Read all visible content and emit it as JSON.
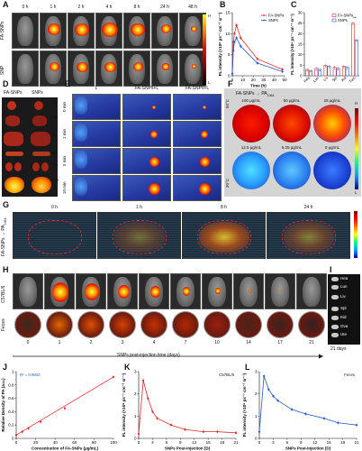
{
  "panel_A": {
    "label": "A",
    "time_labels": [
      "0 h",
      "1 h",
      "2 h",
      "4 h",
      "8 h",
      "24 h",
      "48 h"
    ],
    "row_labels": [
      "FA-SNPs",
      "SNP"
    ],
    "colorbar": {
      "high": "H",
      "low": "L"
    }
  },
  "panel_B": {
    "label": "B",
    "chart_data": {
      "type": "line",
      "xlabel": "Time (h)",
      "ylabel": "FL intensity (×10⁸ ps⁻¹ cm⁻² sr⁻¹)",
      "xlim": [
        0,
        50
      ],
      "ylim": [
        0,
        15
      ],
      "xticks": [
        0,
        10,
        20,
        30,
        40,
        50
      ],
      "yticks": [
        0,
        5,
        10,
        15
      ],
      "series": [
        {
          "name": "FA-SNPs",
          "color": "#e0282e",
          "x": [
            0,
            1,
            2,
            4,
            8,
            24,
            48
          ],
          "y": [
            0.5,
            8,
            10,
            12,
            9,
            4,
            1.5
          ]
        },
        {
          "name": "SNPs",
          "color": "#2a55c8",
          "x": [
            0,
            1,
            2,
            4,
            8,
            24,
            48
          ],
          "y": [
            0.5,
            6,
            8,
            9,
            7,
            3,
            1
          ]
        }
      ]
    }
  },
  "panel_C": {
    "label": "C",
    "chart_data": {
      "type": "bar",
      "ylabel": "FL intensity (×10⁸ ps⁻¹ cm⁻² sr⁻¹)",
      "categories": [
        "Hea",
        "Lun",
        "Liv",
        "Spl",
        "Kid",
        "Tum"
      ],
      "yticks": [
        0,
        5,
        10,
        15,
        20,
        25,
        30
      ],
      "ylim": [
        0,
        30
      ],
      "series": [
        {
          "name": "FA-SNPs",
          "color": "#e0282e",
          "values": [
            3,
            3.5,
            5,
            4,
            4.5,
            25
          ]
        },
        {
          "name": "SNPs",
          "color": "#2a55c8",
          "values": [
            2.5,
            3,
            4.5,
            3.5,
            4,
            17
          ]
        }
      ],
      "annotation": "**"
    }
  },
  "panel_D": {
    "label": "D",
    "col_labels": [
      "FA-SNPs",
      "SNPs"
    ],
    "organs": [
      "Hea",
      "Lun",
      "Liv",
      "Spl",
      "Kid",
      "Tum"
    ]
  },
  "panel_E": {
    "label": "E",
    "col_labels": [
      "L",
      "FA-SNPs+L",
      "FA-SNPs+L"
    ],
    "row_labels": [
      "0 min",
      "1 min",
      "5 min",
      "10 min"
    ]
  },
  "panel_F": {
    "label": "F",
    "title": "FA-SNPs → PA",
    "title_sub": "1064",
    "dish_labels": [
      "100 μg/mL",
      "50 μg/mL",
      "25 μg/mL",
      "12.5 μg/mL",
      "6.25 μg/mL",
      "0 μg/mL"
    ],
    "temp_high": "50°C",
    "temp_low": "30°C",
    "colorbar": {
      "high": "H",
      "low": "L"
    }
  },
  "panel_G": {
    "label": "G",
    "row_label": "FA-SNPs → PA",
    "row_label_sub": "1064",
    "time_labels": [
      "0 h",
      "1 h",
      "8 h",
      "24 h"
    ]
  },
  "panel_H": {
    "label": "H",
    "row_labels": [
      "C57BL/6",
      "Feces"
    ],
    "day_labels": [
      "0",
      "1",
      "2",
      "3",
      "4",
      "7",
      "10",
      "14",
      "17",
      "21"
    ],
    "xlabel": "SNPs post-injection time (days)"
  },
  "panel_I": {
    "label": "I",
    "organs": [
      "Hea",
      "Lun",
      "Liv",
      "Spl",
      "Kid",
      "Ova",
      "Ute"
    ],
    "caption": "21 days"
  },
  "panel_J": {
    "label": "J",
    "chart_data": {
      "type": "line",
      "xlabel": "Concentration of FA-SNPs (μg/mL)",
      "ylabel": "Relative Density of PA (a.u.)",
      "annotation": "R² = 0.9833",
      "xlim": [
        0,
        100
      ],
      "ylim": [
        0,
        1.0
      ],
      "xticks": [
        0,
        20,
        40,
        60,
        80,
        100
      ],
      "yticks": [
        0,
        0.2,
        0.4,
        0.6,
        0.8,
        1.0
      ],
      "series": [
        {
          "color": "#e0282e",
          "x": [
            0,
            6.25,
            12.5,
            25,
            50,
            100
          ],
          "y": [
            0.05,
            0.1,
            0.15,
            0.25,
            0.45,
            0.92
          ]
        }
      ]
    }
  },
  "panel_K": {
    "label": "K",
    "chart_data": {
      "type": "line",
      "xlabel": "SNPs Post-injection (D)",
      "ylabel": "FL intensity (×10⁸ ps⁻¹ cm⁻² sr⁻¹)",
      "annotation": "C57BL/6",
      "xlim": [
        0,
        21
      ],
      "ylim": [
        0,
        3
      ],
      "xticks": [
        0,
        3,
        6,
        9,
        12,
        15,
        18,
        21
      ],
      "yticks": [
        0,
        1,
        2,
        3
      ],
      "series": [
        {
          "color": "#e0282e",
          "x": [
            0,
            1,
            2,
            3,
            4,
            7,
            10,
            14,
            17,
            21
          ],
          "y": [
            0.2,
            2.6,
            1.8,
            1.2,
            0.9,
            0.6,
            0.4,
            0.3,
            0.3,
            0.25
          ]
        }
      ]
    }
  },
  "panel_L": {
    "label": "L",
    "chart_data": {
      "type": "line",
      "xlabel": "SNPs Post-injection (D)",
      "ylabel": "FL intensity (×10⁸ ps⁻¹ cm⁻² sr⁻¹)",
      "annotation": "Feces",
      "xlim": [
        0,
        21
      ],
      "ylim": [
        0,
        3
      ],
      "xticks": [
        0,
        3,
        6,
        9,
        12,
        15,
        18,
        21
      ],
      "yticks": [
        0,
        1,
        2,
        3
      ],
      "series": [
        {
          "color": "#2a55c8",
          "x": [
            0,
            1,
            2,
            3,
            4,
            7,
            10,
            14,
            17,
            21
          ],
          "y": [
            0.3,
            2.8,
            2.2,
            1.9,
            1.7,
            1.3,
            1.1,
            0.9,
            0.7,
            0.6
          ]
        }
      ]
    }
  }
}
